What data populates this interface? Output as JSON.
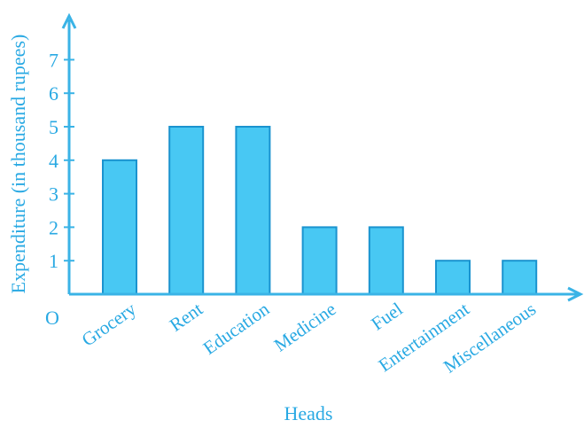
{
  "colors": {
    "axis": "#3ab3e6",
    "text": "#29a9e3",
    "bar_fill": "#48c8f3",
    "bar_stroke": "#1a93cf"
  },
  "chart_data": {
    "type": "bar",
    "categories": [
      "Grocery",
      "Rent",
      "Education",
      "Medicine",
      "Fuel",
      "Entertainment",
      "Miscellaneous"
    ],
    "values": [
      4,
      5,
      5,
      2,
      2,
      1,
      1
    ],
    "xlabel": "Heads",
    "ylabel": "Expenditure (in thousand rupees)",
    "origin_label": "O",
    "yticks": [
      1,
      2,
      3,
      4,
      5,
      6,
      7
    ],
    "ylim": [
      0,
      8
    ],
    "grid": false,
    "legend": "none"
  }
}
